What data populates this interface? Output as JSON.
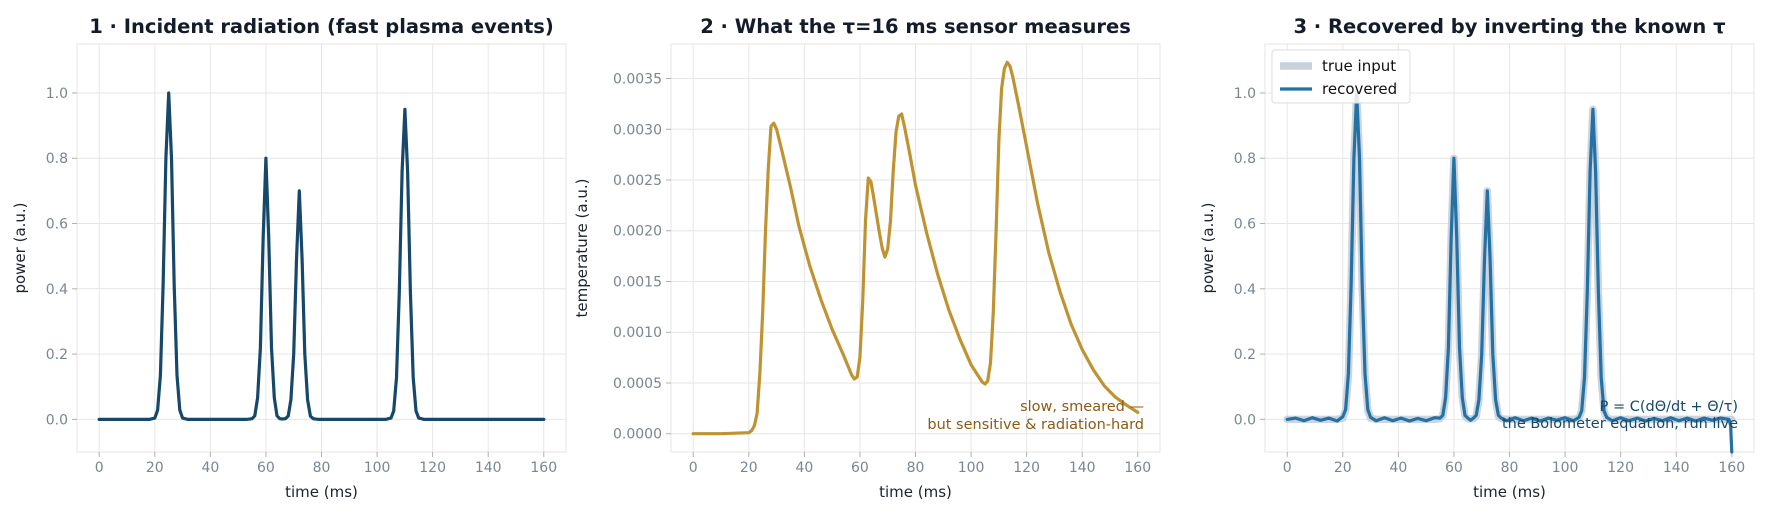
{
  "chart_data": [
    {
      "type": "line",
      "title": "1 · Incident radiation  (fast plasma events)",
      "xlabel": "time (ms)",
      "ylabel": "power (a.u.)",
      "xlim": [
        -8,
        168
      ],
      "ylim": [
        -0.1,
        1.15
      ],
      "xticks": [
        0,
        20,
        40,
        60,
        80,
        100,
        120,
        140,
        160
      ],
      "yticks": [
        0.0,
        0.2,
        0.4,
        0.6,
        0.8,
        1.0
      ],
      "ytick_labels": [
        "0.0",
        "0.2",
        "0.4",
        "0.6",
        "0.8",
        "1.0"
      ],
      "grid": true,
      "series": [
        {
          "color": "#15486a",
          "x": [
            0,
            18,
            20,
            21,
            22,
            23,
            24,
            25,
            26,
            27,
            28,
            29,
            30,
            32,
            53,
            55,
            56,
            57,
            58,
            59,
            60,
            61,
            62,
            63,
            64,
            65,
            66,
            67,
            68,
            69,
            70,
            71,
            72,
            73,
            74,
            75,
            76,
            77,
            79,
            103,
            105,
            106,
            107,
            108,
            109,
            110,
            111,
            112,
            113,
            114,
            115,
            117,
            160
          ],
          "y": [
            0.0,
            0.0,
            0.004,
            0.028,
            0.135,
            0.41,
            0.8,
            1.0,
            0.8,
            0.41,
            0.135,
            0.028,
            0.004,
            0.0,
            0.0,
            0.002,
            0.011,
            0.066,
            0.22,
            0.56,
            0.8,
            0.56,
            0.22,
            0.066,
            0.011,
            0.002,
            0.001,
            0.002,
            0.01,
            0.06,
            0.2,
            0.49,
            0.7,
            0.49,
            0.2,
            0.06,
            0.01,
            0.002,
            0.0,
            0.0,
            0.004,
            0.026,
            0.128,
            0.39,
            0.76,
            0.95,
            0.76,
            0.39,
            0.128,
            0.026,
            0.004,
            0.0,
            0.0
          ]
        }
      ]
    },
    {
      "type": "line",
      "title": "2 · What the τ=16 ms sensor measures",
      "xlabel": "time (ms)",
      "ylabel": "temperature (a.u.)",
      "xlim": [
        -8,
        168
      ],
      "ylim": [
        -0.00018,
        0.00384
      ],
      "xticks": [
        0,
        20,
        40,
        60,
        80,
        100,
        120,
        140,
        160
      ],
      "yticks": [
        0.0,
        0.0005,
        0.001,
        0.0015,
        0.002,
        0.0025,
        0.003,
        0.0035
      ],
      "ytick_labels": [
        "0.0000",
        "0.0005",
        "0.0010",
        "0.0015",
        "0.0020",
        "0.0025",
        "0.0030",
        "0.0035"
      ],
      "grid": true,
      "annotations": [
        "slow, smeared —",
        "but sensitive & radiation-hard"
      ],
      "series": [
        {
          "color": "#bf9332",
          "x": [
            0,
            10,
            20,
            21,
            22,
            23,
            24,
            25,
            26,
            27,
            28,
            29,
            30,
            32,
            35,
            38,
            42,
            46,
            50,
            54,
            57,
            58,
            59,
            60,
            61,
            62,
            63,
            64,
            65,
            66,
            67,
            68,
            69,
            70,
            71,
            72,
            73,
            74,
            75,
            76,
            78,
            80,
            84,
            88,
            92,
            96,
            100,
            104,
            105,
            106,
            107,
            108,
            109,
            110,
            111,
            112,
            113,
            114,
            115,
            117,
            120,
            124,
            128,
            132,
            136,
            140,
            144,
            148,
            152,
            156,
            160
          ],
          "y": [
            0.0,
            0.0,
            1e-05,
            3e-05,
            8e-05,
            0.0002,
            0.0006,
            0.0012,
            0.002,
            0.0026,
            0.00303,
            0.00306,
            0.003,
            0.00278,
            0.00243,
            0.00205,
            0.00165,
            0.00132,
            0.00103,
            0.00078,
            0.00058,
            0.00054,
            0.00056,
            0.00075,
            0.0013,
            0.0021,
            0.00252,
            0.00248,
            0.00232,
            0.00215,
            0.00198,
            0.00183,
            0.00174,
            0.00182,
            0.0021,
            0.0026,
            0.00298,
            0.00313,
            0.00315,
            0.00303,
            0.00275,
            0.00245,
            0.00198,
            0.00157,
            0.00122,
            0.00093,
            0.00068,
            0.00051,
            0.00049,
            0.00052,
            0.0007,
            0.0012,
            0.002,
            0.0029,
            0.0034,
            0.0036,
            0.00366,
            0.00362,
            0.00352,
            0.00325,
            0.00283,
            0.00226,
            0.00178,
            0.0014,
            0.00108,
            0.00083,
            0.00063,
            0.00047,
            0.00036,
            0.00028,
            0.00021
          ]
        }
      ]
    },
    {
      "type": "line",
      "title": "3 · Recovered by inverting the known τ",
      "xlabel": "time (ms)",
      "ylabel": "power (a.u.)",
      "xlim": [
        -8,
        168
      ],
      "ylim": [
        -0.1,
        1.15
      ],
      "xticks": [
        0,
        20,
        40,
        60,
        80,
        100,
        120,
        140,
        160
      ],
      "yticks": [
        0.0,
        0.2,
        0.4,
        0.6,
        0.8,
        1.0
      ],
      "ytick_labels": [
        "0.0",
        "0.2",
        "0.4",
        "0.6",
        "0.8",
        "1.0"
      ],
      "grid": true,
      "legend": {
        "position": "top-left",
        "items": [
          {
            "label": "true input",
            "color": "#c8d2dd"
          },
          {
            "label": "recovered",
            "color": "#2471a3"
          }
        ]
      },
      "annotations": [
        "P = C(dΘ/dt + Θ/τ)",
        "the Bolometer equation, run live"
      ],
      "series": [
        {
          "name": "true input",
          "color": "#c8d2dd",
          "x": [
            0,
            18,
            20,
            21,
            22,
            23,
            24,
            25,
            26,
            27,
            28,
            29,
            30,
            32,
            53,
            55,
            56,
            57,
            58,
            59,
            60,
            61,
            62,
            63,
            64,
            65,
            66,
            67,
            68,
            69,
            70,
            71,
            72,
            73,
            74,
            75,
            76,
            77,
            79,
            103,
            105,
            106,
            107,
            108,
            109,
            110,
            111,
            112,
            113,
            114,
            115,
            117,
            160
          ],
          "y": [
            0.0,
            0.0,
            0.004,
            0.028,
            0.135,
            0.41,
            0.8,
            1.0,
            0.8,
            0.41,
            0.135,
            0.028,
            0.004,
            0.0,
            0.0,
            0.002,
            0.011,
            0.066,
            0.22,
            0.56,
            0.8,
            0.56,
            0.22,
            0.066,
            0.011,
            0.002,
            0.001,
            0.002,
            0.01,
            0.06,
            0.2,
            0.49,
            0.7,
            0.49,
            0.2,
            0.06,
            0.01,
            0.002,
            0.0,
            0.0,
            0.004,
            0.026,
            0.128,
            0.39,
            0.76,
            0.95,
            0.76,
            0.39,
            0.128,
            0.026,
            0.004,
            0.0,
            0.0
          ]
        },
        {
          "name": "recovered",
          "color": "#2471a3",
          "x": [
            0,
            3,
            6,
            9,
            12,
            15,
            18,
            20,
            21,
            22,
            23,
            24,
            25,
            26,
            27,
            28,
            29,
            30,
            32,
            35,
            38,
            41,
            44,
            47,
            50,
            53,
            55,
            56,
            57,
            58,
            59,
            60,
            61,
            62,
            63,
            64,
            65,
            66,
            67,
            68,
            69,
            70,
            71,
            72,
            73,
            74,
            75,
            76,
            77,
            79,
            82,
            85,
            88,
            91,
            94,
            97,
            100,
            103,
            105,
            106,
            107,
            108,
            109,
            110,
            111,
            112,
            113,
            114,
            115,
            117,
            120,
            123,
            126,
            129,
            132,
            135,
            138,
            141,
            144,
            147,
            150,
            153,
            156,
            159,
            159.6,
            159.8,
            160
          ],
          "y": [
            0.0,
            0.004,
            -0.004,
            0.005,
            -0.003,
            0.004,
            -0.005,
            0.008,
            0.03,
            0.14,
            0.41,
            0.8,
            1.0,
            0.8,
            0.41,
            0.14,
            0.03,
            0.006,
            -0.004,
            0.005,
            -0.004,
            0.004,
            -0.005,
            0.003,
            -0.004,
            0.005,
            0.004,
            0.012,
            0.066,
            0.22,
            0.56,
            0.8,
            0.56,
            0.22,
            0.066,
            0.012,
            0.004,
            -0.003,
            0.004,
            0.012,
            0.06,
            0.2,
            0.49,
            0.7,
            0.49,
            0.2,
            0.06,
            0.012,
            0.004,
            -0.004,
            0.005,
            -0.004,
            0.004,
            -0.005,
            0.004,
            -0.003,
            0.005,
            -0.004,
            0.006,
            0.026,
            0.128,
            0.39,
            0.76,
            0.95,
            0.76,
            0.39,
            0.128,
            0.026,
            0.006,
            -0.004,
            0.005,
            -0.004,
            0.004,
            -0.005,
            0.003,
            -0.004,
            0.005,
            -0.004,
            0.004,
            -0.005,
            0.004,
            -0.003,
            0.004,
            0.0,
            -0.02,
            -0.06,
            -0.1
          ]
        }
      ]
    }
  ]
}
